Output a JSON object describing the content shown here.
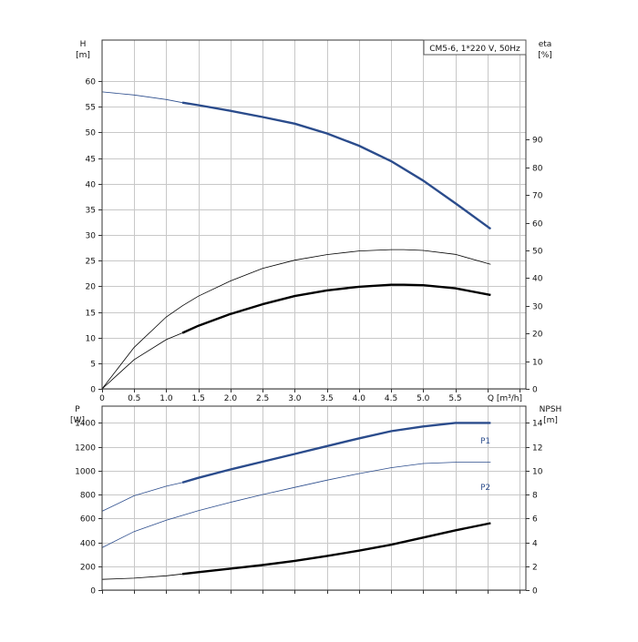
{
  "chart_data": [
    {
      "type": "line",
      "panel": "top",
      "legend_text": "CM5-6, 1*220 V, 50Hz",
      "legend_placement": "top-right",
      "grid": true,
      "xlabel": "Q [m³/h]",
      "xlim": [
        0,
        6.6
      ],
      "x_ticks": [
        "0",
        "0.5",
        "1.0",
        "1.5",
        "2.0",
        "2.5",
        "3.0",
        "3.5",
        "4.0",
        "4.5",
        "5.0",
        "5.5"
      ],
      "y_left": {
        "label_line1": "H",
        "label_line2": "[m]",
        "lim": [
          0,
          68
        ],
        "ticks": [
          "0",
          "5",
          "10",
          "15",
          "20",
          "25",
          "30",
          "35",
          "40",
          "45",
          "50",
          "55",
          "60"
        ]
      },
      "y_right": {
        "label_line1": "eta",
        "label_line2": "[%]",
        "lim": [
          0,
          126
        ],
        "ticks": [
          "0",
          "10",
          "20",
          "30",
          "40",
          "50",
          "60",
          "70",
          "80",
          "90"
        ]
      },
      "series": [
        {
          "axis": "left",
          "color": "#2b4c8c",
          "x": [
            0,
            0.5,
            1.0,
            1.25,
            1.5,
            2.0,
            2.5,
            3.0,
            3.5,
            4.0,
            4.5,
            5.0,
            5.5,
            6.05
          ],
          "y": [
            57.9,
            57.3,
            56.4,
            55.8,
            55.3,
            54.2,
            53.0,
            51.7,
            49.8,
            47.4,
            44.4,
            40.6,
            36.2,
            31.2
          ],
          "thick_from": 1.25
        },
        {
          "axis": "right",
          "color": "#000000",
          "x": [
            0,
            0.5,
            1.0,
            1.25,
            1.5,
            2.0,
            2.5,
            3.0,
            3.5,
            4.0,
            4.5,
            4.7,
            5.0,
            5.5,
            6.05
          ],
          "y": [
            0,
            15,
            26,
            30,
            33.5,
            39,
            43.5,
            46.5,
            48.5,
            49.8,
            50.3,
            50.3,
            50.0,
            48.6,
            45.0
          ],
          "thick_from": 99
        },
        {
          "axis": "left",
          "color": "#000000",
          "x": [
            0,
            0.5,
            1.0,
            1.25,
            1.5,
            2.0,
            2.5,
            3.0,
            3.5,
            4.0,
            4.5,
            4.7,
            5.0,
            5.5,
            6.05
          ],
          "y": [
            0,
            5.7,
            9.6,
            10.9,
            12.3,
            14.6,
            16.5,
            18.1,
            19.2,
            19.9,
            20.3,
            20.3,
            20.2,
            19.6,
            18.3
          ],
          "thick_from": 1.25
        }
      ]
    },
    {
      "type": "line",
      "panel": "bottom",
      "grid": true,
      "xlim": [
        0,
        6.6
      ],
      "y_left": {
        "label_line1": "P",
        "label_line2": "[W]",
        "lim": [
          0,
          1540
        ],
        "ticks": [
          "0",
          "200",
          "400",
          "600",
          "800",
          "1000",
          "1200",
          "1400"
        ]
      },
      "y_right": {
        "label_line1": "NPSH",
        "label_line2": "[m]",
        "lim": [
          0,
          15.4
        ],
        "ticks": [
          "0",
          "2",
          "4",
          "6",
          "8",
          "10",
          "12",
          "14"
        ]
      },
      "series": [
        {
          "name": "P1",
          "axis": "left",
          "color": "#2b4c8c",
          "x": [
            0,
            0.5,
            1.0,
            1.25,
            1.5,
            2.0,
            2.5,
            3.0,
            3.5,
            4.0,
            4.5,
            5.0,
            5.5,
            6.05
          ],
          "y": [
            660,
            790,
            870,
            900,
            940,
            1010,
            1075,
            1140,
            1205,
            1270,
            1330,
            1370,
            1400,
            1400
          ],
          "thick_from": 1.25
        },
        {
          "name": "P2",
          "axis": "left",
          "color": "#2b4c8c",
          "x": [
            0,
            0.5,
            1.0,
            1.25,
            1.5,
            2.0,
            2.5,
            3.0,
            3.5,
            4.0,
            4.5,
            5.0,
            5.5,
            6.05
          ],
          "y": [
            355,
            490,
            585,
            625,
            665,
            735,
            800,
            860,
            920,
            975,
            1025,
            1060,
            1070,
            1070
          ],
          "thick_from": 99
        },
        {
          "axis": "right",
          "color": "#000000",
          "x": [
            0,
            0.5,
            1.0,
            1.25,
            1.5,
            2.0,
            2.5,
            3.0,
            3.5,
            4.0,
            4.5,
            5.0,
            5.5,
            6.05
          ],
          "y": [
            0.9,
            1.0,
            1.2,
            1.35,
            1.5,
            1.8,
            2.1,
            2.45,
            2.85,
            3.3,
            3.8,
            4.4,
            5.0,
            5.6
          ],
          "thick_from": 1.25
        }
      ]
    }
  ]
}
